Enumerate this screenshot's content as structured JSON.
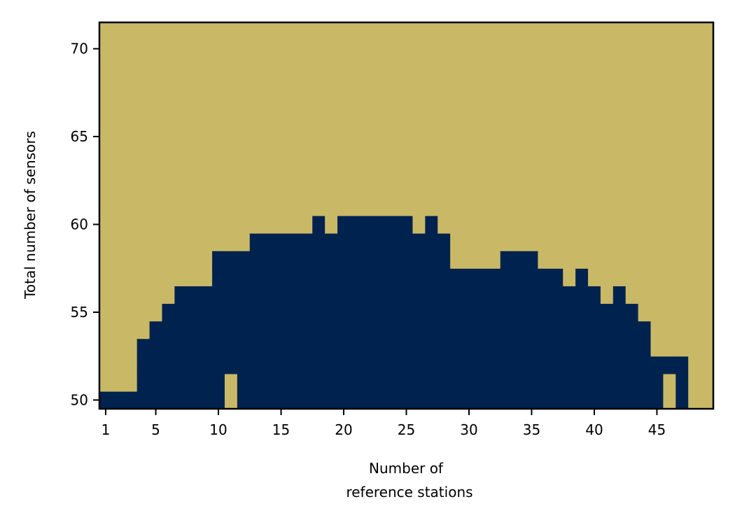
{
  "chart_data": {
    "type": "heatmap",
    "title": "",
    "xlabel_lines": [
      "Number of",
      "reference stations"
    ],
    "ylabel": "Total number of sensors",
    "xlim": [
      0.5,
      49.5
    ],
    "ylim": [
      49.5,
      71.5
    ],
    "x_ticks": [
      1,
      5,
      10,
      15,
      20,
      25,
      30,
      35,
      40,
      45
    ],
    "y_ticks": [
      50,
      55,
      60,
      65,
      70
    ],
    "grid": false,
    "legend": "none",
    "colors": {
      "true": "#00224e",
      "false": "#c9b967"
    },
    "x": [
      1,
      2,
      3,
      4,
      5,
      6,
      7,
      8,
      9,
      10,
      11,
      12,
      13,
      14,
      15,
      16,
      17,
      18,
      19,
      20,
      21,
      22,
      23,
      24,
      25,
      26,
      27,
      28,
      29,
      30,
      31,
      32,
      33,
      34,
      35,
      36,
      37,
      38,
      39,
      40,
      41,
      42,
      43,
      44,
      45,
      46,
      47,
      48,
      49
    ],
    "y_range": [
      50,
      71
    ],
    "dark_max_per_x": [
      50,
      50,
      50,
      53,
      54,
      55,
      56,
      56,
      56,
      58,
      58,
      58,
      59,
      59,
      59,
      59,
      59,
      60,
      59,
      60,
      60,
      60,
      60,
      60,
      60,
      59,
      60,
      59,
      57,
      57,
      57,
      57,
      58,
      58,
      58,
      57,
      57,
      56,
      57,
      56,
      55,
      56,
      55,
      54,
      52,
      52,
      52,
      null,
      null
    ],
    "dark_min_per_x": [
      50,
      50,
      50,
      50,
      50,
      50,
      50,
      50,
      50,
      50,
      52,
      50,
      50,
      50,
      50,
      50,
      50,
      50,
      50,
      50,
      50,
      50,
      50,
      50,
      50,
      50,
      50,
      50,
      50,
      50,
      50,
      50,
      50,
      50,
      50,
      50,
      50,
      50,
      50,
      50,
      50,
      50,
      50,
      50,
      50,
      52,
      50,
      null,
      null
    ],
    "light_exceptions": [
      {
        "x": 46,
        "y": 51
      }
    ]
  }
}
